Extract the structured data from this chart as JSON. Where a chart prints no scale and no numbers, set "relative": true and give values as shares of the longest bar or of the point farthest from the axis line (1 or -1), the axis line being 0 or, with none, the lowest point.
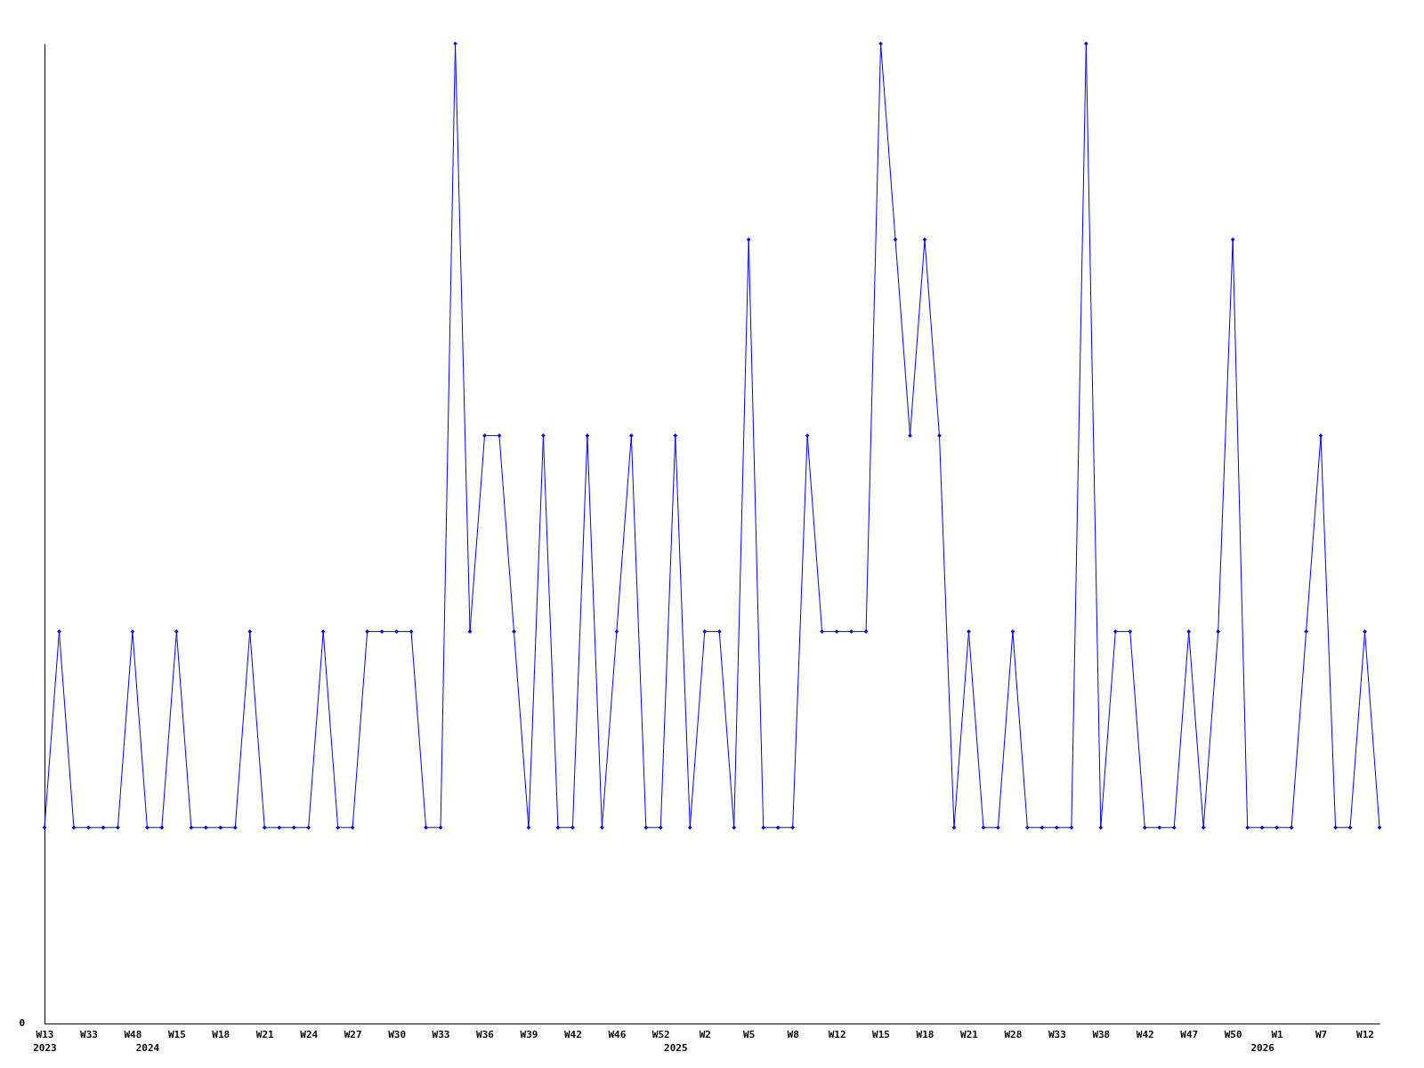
{
  "chart_data": {
    "type": "line",
    "relative": true,
    "marker": "diamond",
    "line_style": "solid",
    "categories": [
      "W13\n2023",
      null,
      null,
      "W33",
      null,
      null,
      "W48",
      "\n2024",
      null,
      "W15",
      null,
      null,
      "W18",
      null,
      null,
      "W21",
      null,
      null,
      "W24",
      null,
      null,
      "W27",
      null,
      null,
      "W30",
      null,
      null,
      "W33",
      null,
      null,
      "W36",
      null,
      null,
      "W39",
      null,
      null,
      "W42",
      null,
      null,
      "W46",
      null,
      null,
      "W52",
      "\n2025",
      null,
      "W2",
      null,
      null,
      "W5",
      null,
      null,
      "W8",
      null,
      null,
      "W12",
      null,
      null,
      "W15",
      null,
      null,
      "W18",
      null,
      null,
      "W21",
      null,
      null,
      "W28",
      null,
      null,
      "W33",
      null,
      null,
      "W38",
      null,
      null,
      "W42",
      null,
      null,
      "W47",
      null,
      null,
      "W50",
      null,
      "\n2026",
      "W1",
      null,
      null,
      "W7",
      null,
      null,
      "W12",
      null
    ],
    "series": [
      {
        "color": "#0000ff",
        "values": [
          0.2,
          0.4,
          0.2,
          0.2,
          0.2,
          0.2,
          0.4,
          0.2,
          0.2,
          0.4,
          0.2,
          0.2,
          0.2,
          0.2,
          0.4,
          0.2,
          0.2,
          0.2,
          0.2,
          0.4,
          0.2,
          0.2,
          0.4,
          0.4,
          0.4,
          0.4,
          0.2,
          0.2,
          1,
          0.4,
          0.6,
          0.6,
          0.4,
          0.2,
          0.6,
          0.2,
          0.2,
          0.6,
          0.2,
          0.4,
          0.6,
          0.2,
          0.2,
          0.6,
          0.2,
          0.4,
          0.4,
          0.2,
          0.8,
          0.2,
          0.2,
          0.2,
          0.6,
          0.4,
          0.4,
          0.4,
          0.4,
          1,
          0.8,
          0.6,
          0.8,
          0.6,
          0.2,
          0.4,
          0.2,
          0.2,
          0.4,
          0.2,
          0.2,
          0.2,
          0.2,
          1,
          0.2,
          0.4,
          0.4,
          0.2,
          0.2,
          0.2,
          0.4,
          0.2,
          0.4,
          0.8,
          0.2,
          0.2,
          0.2,
          0.2,
          0.4,
          0.6,
          0.2,
          0.2,
          0.4,
          0.2
        ]
      }
    ],
    "annotations": [
      "0"
    ]
  }
}
